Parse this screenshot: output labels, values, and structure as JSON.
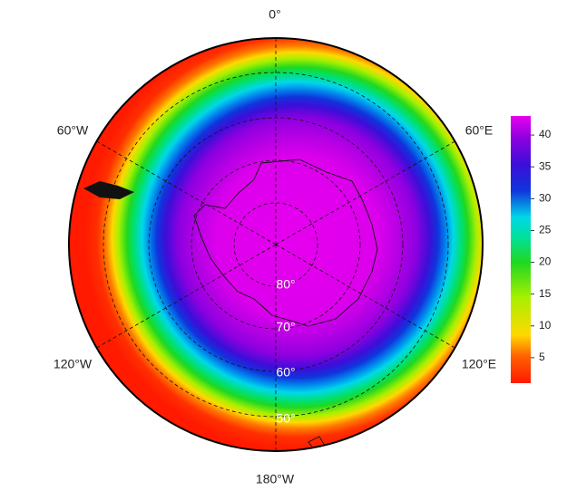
{
  "map": {
    "longitude_labels": [
      "0°",
      "60°E",
      "120°E",
      "180°W",
      "120°W",
      "60°W"
    ],
    "latitude_labels": [
      "80°",
      "70°",
      "60°",
      "50°"
    ],
    "colorbar": {
      "range": [
        1,
        43
      ],
      "ticks": [
        5,
        10,
        15,
        20,
        25,
        30,
        35,
        40
      ]
    }
  }
}
